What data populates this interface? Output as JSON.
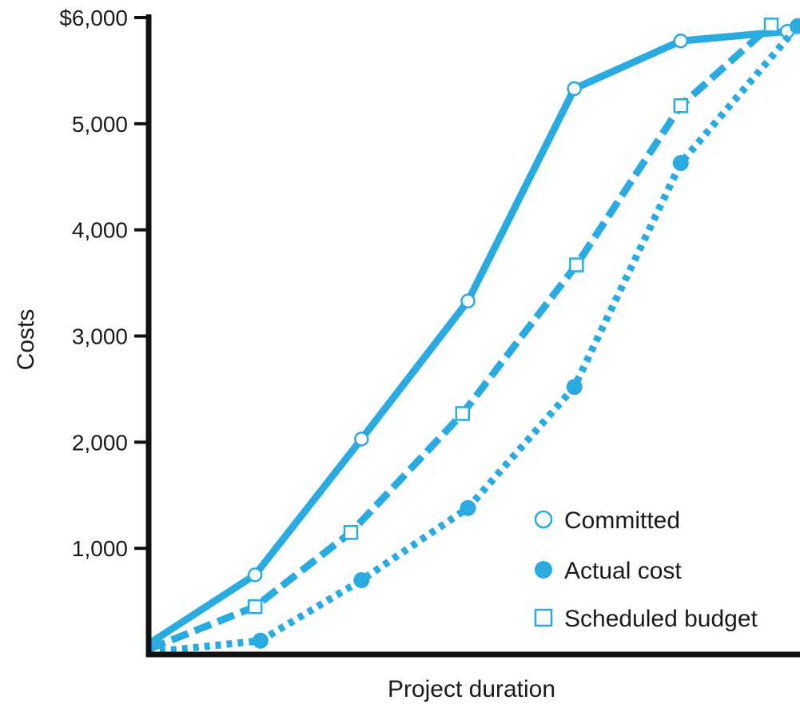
{
  "chart_data": {
    "type": "line",
    "title": "",
    "xlabel": "Project duration",
    "ylabel": "Costs",
    "x": [
      0,
      1,
      2,
      3,
      4,
      5,
      6
    ],
    "ylim": [
      0,
      6000
    ],
    "y_ticks": [
      1000,
      2000,
      3000,
      4000,
      5000,
      6000
    ],
    "y_tick_labels": [
      "1,000",
      "2,000",
      "3,000",
      "4,000",
      "5,000",
      "$6,000"
    ],
    "grid": false,
    "legend_position": "bottom-right",
    "color": "#29abe2",
    "series": [
      {
        "name": "Committed",
        "line_style": "solid",
        "marker": "open-circle",
        "points": [
          [
            0,
            100
          ],
          [
            1,
            750
          ],
          [
            2,
            2030
          ],
          [
            3,
            3330
          ],
          [
            4,
            5330
          ],
          [
            5,
            5780
          ],
          [
            6,
            5870
          ]
        ]
      },
      {
        "name": "Scheduled budget",
        "line_style": "dashed",
        "marker": "open-square",
        "points": [
          [
            0,
            50
          ],
          [
            1,
            450
          ],
          [
            1.9,
            1150
          ],
          [
            2.95,
            2270
          ],
          [
            4.02,
            3670
          ],
          [
            5.0,
            5170
          ],
          [
            5.85,
            5930
          ]
        ]
      },
      {
        "name": "Actual cost",
        "line_style": "dotted",
        "marker": "filled-circle",
        "points": [
          [
            0,
            20
          ],
          [
            1.05,
            130
          ],
          [
            2.0,
            700
          ],
          [
            3.0,
            1380
          ],
          [
            4.0,
            2520
          ],
          [
            5.0,
            4630
          ],
          [
            6.1,
            5920
          ]
        ]
      }
    ],
    "legend": [
      {
        "label": "Committed",
        "marker": "open-circle"
      },
      {
        "label": "Actual cost",
        "marker": "filled-circle"
      },
      {
        "label": "Scheduled budget",
        "marker": "open-square"
      }
    ]
  }
}
